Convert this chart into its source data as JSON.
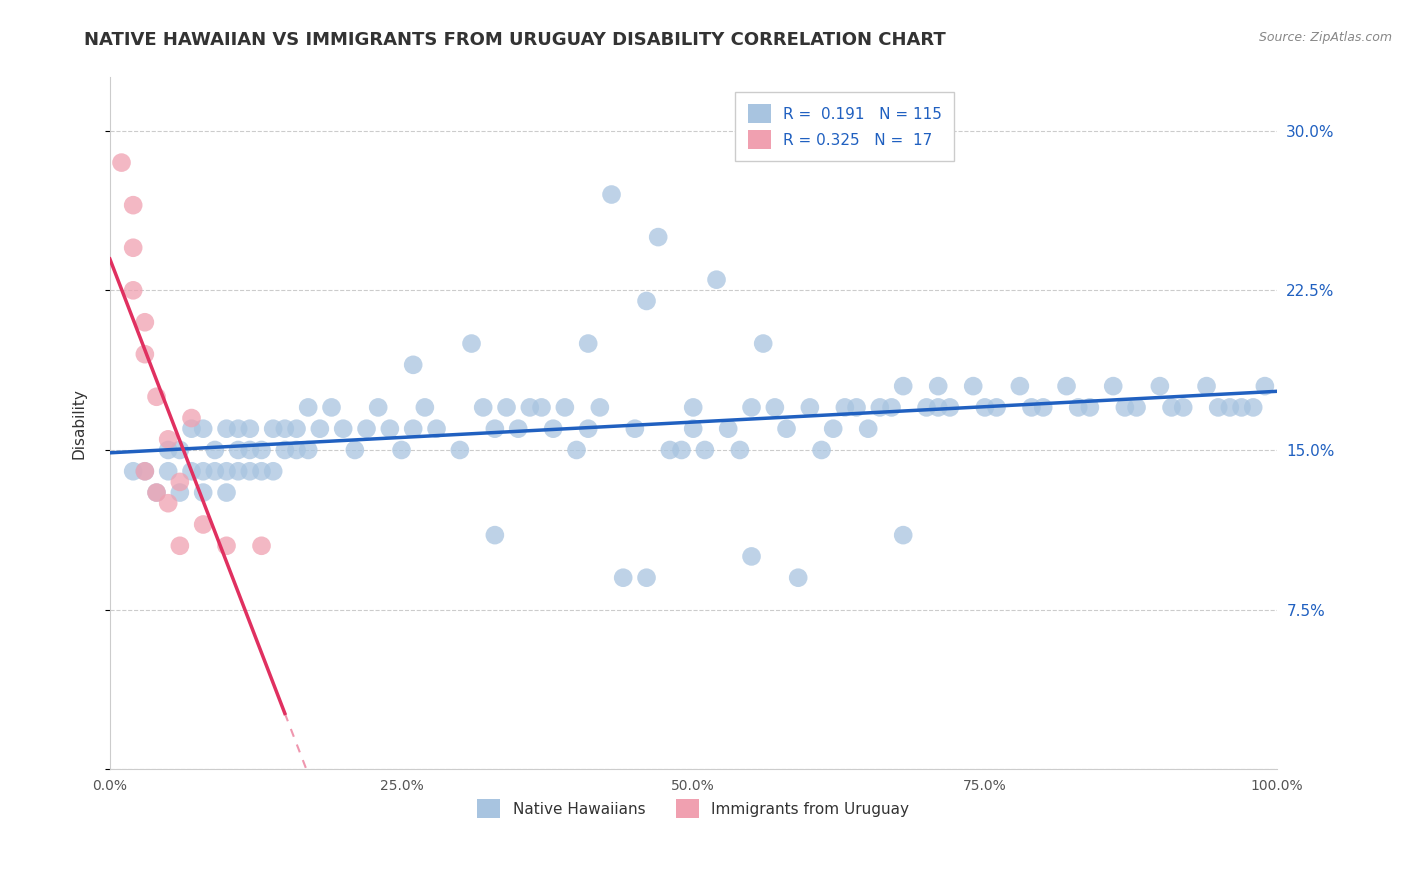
{
  "title": "NATIVE HAWAIIAN VS IMMIGRANTS FROM URUGUAY DISABILITY CORRELATION CHART",
  "source": "Source: ZipAtlas.com",
  "ylabel": "Disability",
  "xlim": [
    0.0,
    1.0
  ],
  "ylim": [
    0.0,
    0.325
  ],
  "yticks": [
    0.0,
    0.075,
    0.15,
    0.225,
    0.3
  ],
  "ytick_labels": [
    "",
    "7.5%",
    "15.0%",
    "22.5%",
    "30.0%"
  ],
  "xticks": [
    0.0,
    0.25,
    0.5,
    0.75,
    1.0
  ],
  "xtick_labels": [
    "0.0%",
    "25.0%",
    "50.0%",
    "75.0%",
    "100.0%"
  ],
  "blue_R": 0.191,
  "blue_N": 115,
  "pink_R": 0.325,
  "pink_N": 17,
  "blue_color": "#a8c4e0",
  "pink_color": "#f0a0b0",
  "blue_line_color": "#2060c0",
  "pink_line_color": "#e03060",
  "blue_scatter_x": [
    0.02,
    0.03,
    0.04,
    0.05,
    0.05,
    0.06,
    0.06,
    0.07,
    0.07,
    0.08,
    0.08,
    0.08,
    0.09,
    0.09,
    0.1,
    0.1,
    0.1,
    0.11,
    0.11,
    0.11,
    0.12,
    0.12,
    0.12,
    0.13,
    0.13,
    0.14,
    0.14,
    0.15,
    0.15,
    0.16,
    0.16,
    0.17,
    0.17,
    0.18,
    0.19,
    0.2,
    0.21,
    0.22,
    0.23,
    0.24,
    0.25,
    0.26,
    0.27,
    0.28,
    0.3,
    0.31,
    0.32,
    0.33,
    0.34,
    0.35,
    0.36,
    0.37,
    0.38,
    0.39,
    0.4,
    0.41,
    0.42,
    0.43,
    0.45,
    0.47,
    0.48,
    0.5,
    0.52,
    0.53,
    0.55,
    0.56,
    0.57,
    0.58,
    0.6,
    0.62,
    0.63,
    0.65,
    0.66,
    0.68,
    0.7,
    0.72,
    0.74,
    0.76,
    0.78,
    0.8,
    0.82,
    0.84,
    0.86,
    0.88,
    0.9,
    0.92,
    0.94,
    0.96,
    0.98,
    0.99,
    0.44,
    0.46,
    0.49,
    0.51,
    0.54,
    0.59,
    0.61,
    0.64,
    0.67,
    0.71,
    0.75,
    0.79,
    0.83,
    0.87,
    0.91,
    0.95,
    0.97,
    0.26,
    0.33,
    0.41,
    0.55,
    0.68,
    0.5,
    0.46,
    0.71
  ],
  "blue_scatter_y": [
    0.14,
    0.14,
    0.13,
    0.14,
    0.15,
    0.13,
    0.15,
    0.14,
    0.16,
    0.13,
    0.14,
    0.16,
    0.14,
    0.15,
    0.13,
    0.14,
    0.16,
    0.14,
    0.15,
    0.16,
    0.14,
    0.15,
    0.16,
    0.14,
    0.15,
    0.14,
    0.16,
    0.15,
    0.16,
    0.15,
    0.16,
    0.15,
    0.17,
    0.16,
    0.17,
    0.16,
    0.15,
    0.16,
    0.17,
    0.16,
    0.15,
    0.16,
    0.17,
    0.16,
    0.15,
    0.2,
    0.17,
    0.16,
    0.17,
    0.16,
    0.17,
    0.17,
    0.16,
    0.17,
    0.15,
    0.16,
    0.17,
    0.27,
    0.16,
    0.25,
    0.15,
    0.17,
    0.23,
    0.16,
    0.17,
    0.2,
    0.17,
    0.16,
    0.17,
    0.16,
    0.17,
    0.16,
    0.17,
    0.18,
    0.17,
    0.17,
    0.18,
    0.17,
    0.18,
    0.17,
    0.18,
    0.17,
    0.18,
    0.17,
    0.18,
    0.17,
    0.18,
    0.17,
    0.17,
    0.18,
    0.09,
    0.09,
    0.15,
    0.15,
    0.15,
    0.09,
    0.15,
    0.17,
    0.17,
    0.17,
    0.17,
    0.17,
    0.17,
    0.17,
    0.17,
    0.17,
    0.17,
    0.19,
    0.11,
    0.2,
    0.1,
    0.11,
    0.16,
    0.22,
    0.18
  ],
  "pink_scatter_x": [
    0.01,
    0.02,
    0.02,
    0.02,
    0.03,
    0.03,
    0.03,
    0.04,
    0.04,
    0.05,
    0.05,
    0.06,
    0.06,
    0.07,
    0.08,
    0.1,
    0.13
  ],
  "pink_scatter_y": [
    0.285,
    0.265,
    0.245,
    0.225,
    0.21,
    0.195,
    0.14,
    0.175,
    0.13,
    0.155,
    0.125,
    0.135,
    0.105,
    0.165,
    0.115,
    0.105,
    0.105
  ],
  "background_color": "#ffffff",
  "grid_color": "#cccccc",
  "title_fontsize": 13,
  "axis_label_fontsize": 11,
  "tick_fontsize": 10,
  "legend_fontsize": 11
}
